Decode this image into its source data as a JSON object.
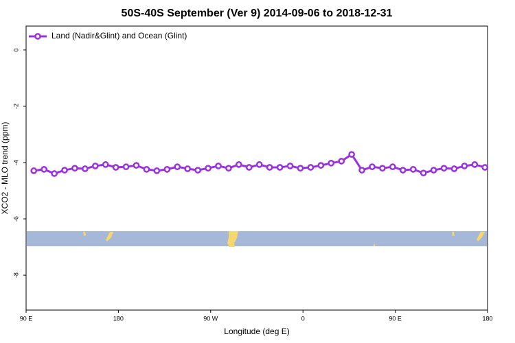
{
  "chart_data": {
    "type": "line",
    "title": "50S-40S September (Ver 9)   2014-09-06 to 2018-12-31",
    "x_label": "Longitude (deg E)",
    "y_label": "XCO2 - MLO trend (ppm)",
    "x": [
      97.5,
      107.5,
      117.5,
      127.5,
      137.5,
      147.5,
      157.5,
      167.5,
      177.5,
      187.5,
      197.5,
      207.5,
      217.5,
      227.5,
      237.5,
      247.5,
      257.5,
      267.5,
      277.5,
      287.5,
      297.5,
      307.5,
      317.5,
      327.5,
      337.5,
      347.5,
      357.5,
      367.5,
      377.5,
      387.5,
      397.5,
      407.5,
      417.5,
      427.5,
      437.5,
      447.5,
      457.5,
      467.5,
      477.5,
      487.5,
      497.5,
      507.5,
      517.5,
      527.5,
      537.5
    ],
    "series": [
      {
        "name": "Land (Nadir&Glint) and Ocean (Glint)",
        "color": "#9b30e0",
        "values": [
          -4.29,
          -4.24,
          -4.39,
          -4.27,
          -4.2,
          -4.22,
          -4.12,
          -4.07,
          -4.17,
          -4.15,
          -4.1,
          -4.24,
          -4.29,
          -4.24,
          -4.15,
          -4.22,
          -4.27,
          -4.2,
          -4.12,
          -4.2,
          -4.07,
          -4.17,
          -4.07,
          -4.17,
          -4.17,
          -4.12,
          -4.2,
          -4.17,
          -4.1,
          -4.02,
          -3.95,
          -3.71,
          -4.27,
          -4.15,
          -4.2,
          -4.15,
          -4.27,
          -4.24,
          -4.37,
          -4.27,
          -4.2,
          -4.22,
          -4.12,
          -4.07,
          -4.17
        ]
      }
    ],
    "xlim": [
      90,
      540
    ],
    "xticks": [
      {
        "value": 90,
        "label": "90 E"
      },
      {
        "value": 180,
        "label": "180"
      },
      {
        "value": 270,
        "label": "90 W"
      },
      {
        "value": 360,
        "label": "0"
      },
      {
        "value": 450,
        "label": "90 E"
      },
      {
        "value": 540,
        "label": "180"
      }
    ],
    "ylim": [
      -9.24,
      0.85
    ],
    "yticks": [
      0,
      -2,
      -4,
      -6,
      -8
    ],
    "legend": "top-left"
  }
}
